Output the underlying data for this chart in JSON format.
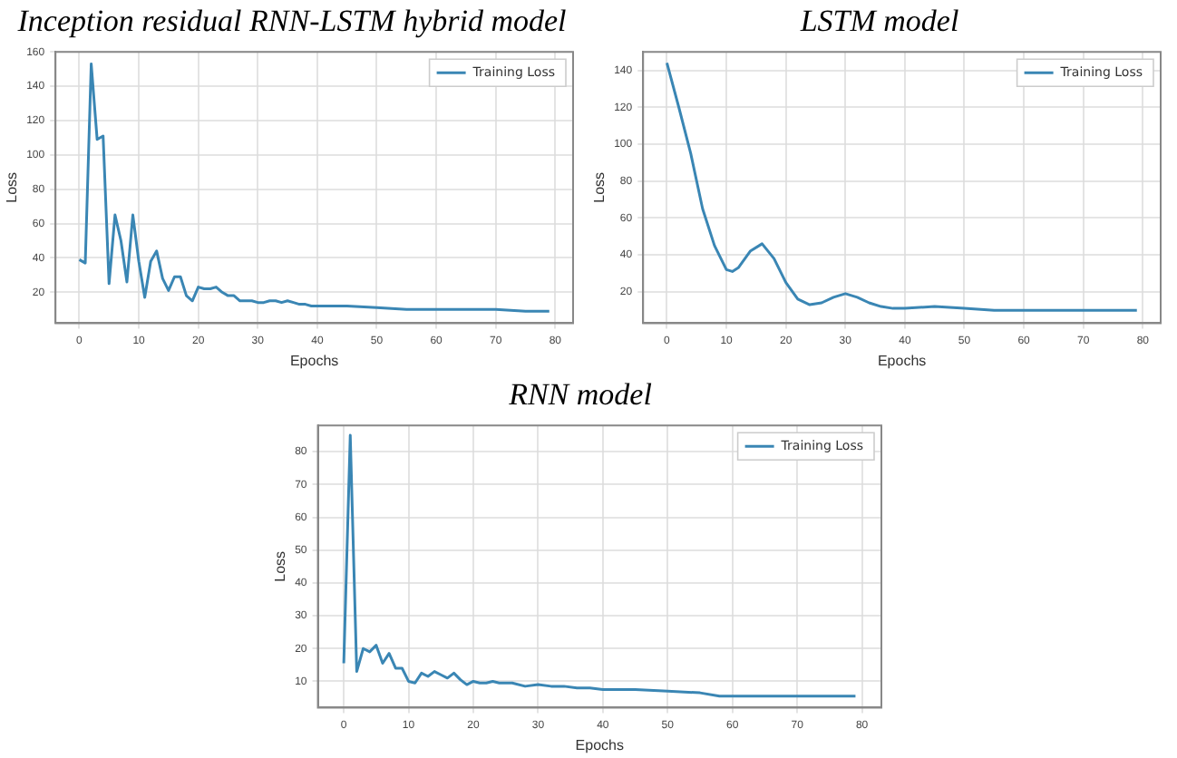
{
  "chart_data": [
    {
      "type": "line",
      "title": "Inception residual RNN-LSTM hybrid model",
      "xlabel": "Epochs",
      "ylabel": "Loss",
      "xlim": [
        -4,
        83
      ],
      "xticks": [
        0,
        10,
        20,
        30,
        40,
        50,
        60,
        70,
        80
      ],
      "ylim": [
        2,
        160
      ],
      "yticks": [
        20,
        40,
        60,
        80,
        100,
        120,
        140,
        160
      ],
      "grid": true,
      "legend": "top right",
      "marker": "none",
      "line_style": "solid",
      "series": [
        {
          "name": "Training Loss",
          "color": "#3a86b4",
          "x": [
            0,
            1,
            2,
            3,
            4,
            5,
            6,
            7,
            8,
            9,
            10,
            11,
            12,
            13,
            14,
            15,
            16,
            17,
            18,
            19,
            20,
            21,
            22,
            23,
            24,
            25,
            26,
            27,
            28,
            29,
            30,
            31,
            32,
            33,
            34,
            35,
            36,
            37,
            38,
            39,
            40,
            45,
            50,
            55,
            60,
            65,
            70,
            75,
            79
          ],
          "values": [
            39,
            37,
            153,
            109,
            111,
            25,
            65,
            50,
            26,
            65,
            38,
            17,
            38,
            44,
            28,
            21,
            29,
            29,
            18,
            15,
            23,
            22,
            22,
            23,
            20,
            18,
            18,
            15,
            15,
            15,
            14,
            14,
            15,
            15,
            14,
            15,
            14,
            13,
            13,
            12,
            12,
            12,
            11,
            10,
            10,
            10,
            10,
            9,
            9
          ]
        }
      ]
    },
    {
      "type": "line",
      "title": "LSTM model",
      "xlabel": "Epochs",
      "ylabel": "Loss",
      "xlim": [
        -4,
        83
      ],
      "xticks": [
        0,
        10,
        20,
        30,
        40,
        50,
        60,
        70,
        80
      ],
      "ylim": [
        3,
        150
      ],
      "yticks": [
        20,
        40,
        60,
        80,
        100,
        120,
        140
      ],
      "grid": true,
      "legend": "top right",
      "marker": "none",
      "line_style": "solid",
      "series": [
        {
          "name": "Training Loss",
          "color": "#3a86b4",
          "x": [
            0,
            2,
            4,
            6,
            8,
            10,
            11,
            12,
            14,
            16,
            18,
            20,
            22,
            24,
            26,
            28,
            30,
            32,
            34,
            36,
            38,
            40,
            45,
            50,
            55,
            60,
            65,
            70,
            79
          ],
          "values": [
            144,
            120,
            95,
            65,
            45,
            32,
            31,
            33,
            42,
            46,
            38,
            25,
            16,
            13,
            14,
            17,
            19,
            17,
            14,
            12,
            11,
            11,
            12,
            11,
            10,
            10,
            10,
            10,
            10
          ]
        }
      ]
    },
    {
      "type": "line",
      "title": "RNN model",
      "xlabel": "Epochs",
      "ylabel": "Loss",
      "xlim": [
        -4,
        83
      ],
      "xticks": [
        0,
        10,
        20,
        30,
        40,
        50,
        60,
        70,
        80
      ],
      "ylim": [
        2,
        88
      ],
      "yticks": [
        10,
        20,
        30,
        40,
        50,
        60,
        70,
        80
      ],
      "grid": true,
      "legend": "top right",
      "marker": "none",
      "line_style": "solid",
      "series": [
        {
          "name": "Training Loss",
          "color": "#3a86b4",
          "x": [
            0,
            1,
            2,
            3,
            4,
            5,
            6,
            7,
            8,
            9,
            10,
            11,
            12,
            13,
            14,
            15,
            16,
            17,
            18,
            19,
            20,
            21,
            22,
            23,
            24,
            25,
            26,
            28,
            30,
            32,
            34,
            36,
            38,
            40,
            45,
            50,
            55,
            58,
            60,
            70,
            79
          ],
          "values": [
            15.5,
            85,
            13,
            20,
            19,
            21,
            15.5,
            18.5,
            14,
            14,
            10,
            9.5,
            12.5,
            11.5,
            13,
            12,
            11,
            12.5,
            10.5,
            9,
            10,
            9.5,
            9.5,
            10,
            9.5,
            9.5,
            9.5,
            8.5,
            9,
            8.5,
            8.5,
            8,
            8,
            7.5,
            7.5,
            7,
            6.5,
            5.5,
            5.5,
            5.5,
            5.5
          ]
        }
      ]
    }
  ]
}
